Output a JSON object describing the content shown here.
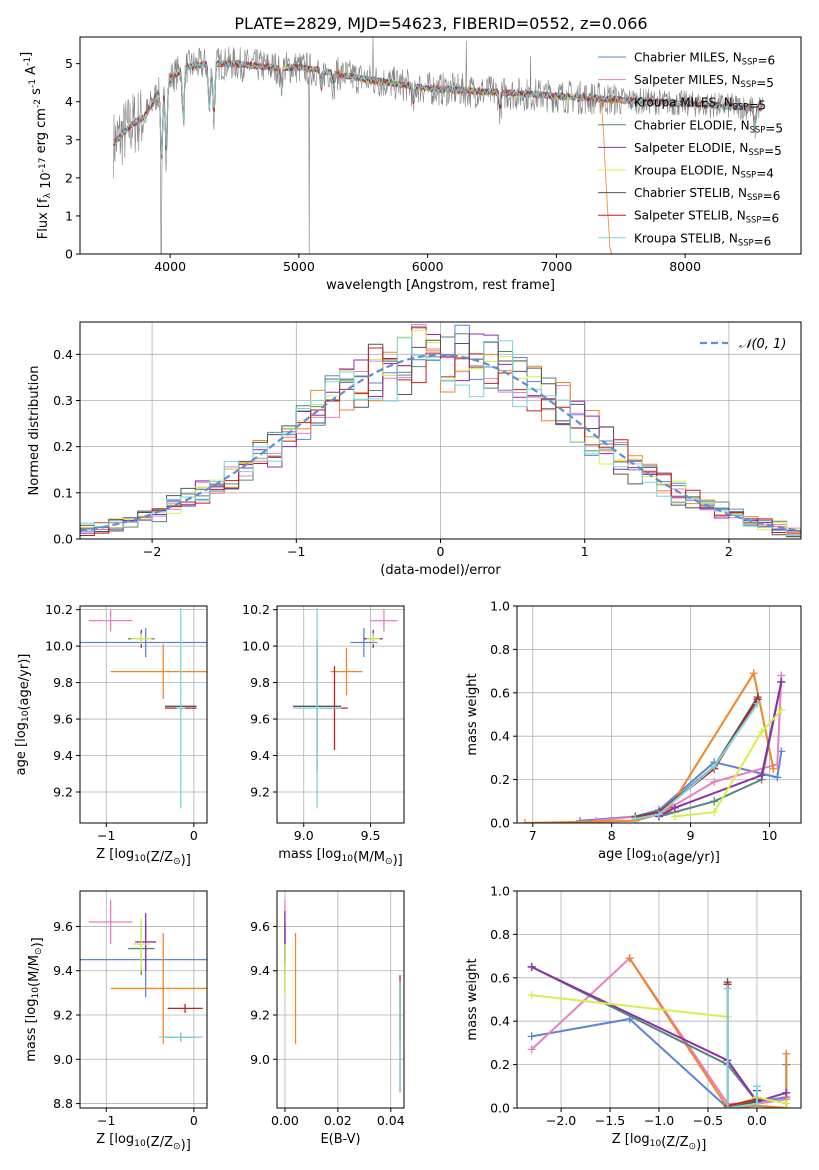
{
  "figure_title": "PLATE=2829, MJD=54623, FIBERID=0552, z=0.066",
  "colors": {
    "Chabrier MILES": "#5b86d6",
    "Salpeter MILES": "#e87fbf",
    "Kroupa MILES": "#f0862a",
    "Chabrier ELODIE": "#56877a",
    "Salpeter ELODIE": "#8f2fb0",
    "Kroupa ELODIE": "#d6f04a",
    "Chabrier STELIB": "#555555",
    "Salpeter STELIB": "#c81e1e",
    "Kroupa STELIB": "#79d6de",
    "normal_curve": "#5b8fd6",
    "data_spectrum": "#808080"
  },
  "chart_data": [
    {
      "id": "spectrum",
      "type": "line",
      "xlabel": "wavelength [Angstrom, rest frame]",
      "ylabel": "Flux [f_λ 10^-17 erg cm^-2 s^-1 A^-1]",
      "xlim": [
        3300,
        8900
      ],
      "ylim": [
        0,
        5.7
      ],
      "xticks": [
        4000,
        5000,
        6000,
        7000,
        8000
      ],
      "yticks": [
        0,
        1,
        2,
        3,
        4,
        5
      ],
      "legend_position": "upper right",
      "legend": [
        {
          "name": "Chabrier MILES, N_SSP=6",
          "color": "#5b86d6"
        },
        {
          "name": "Salpeter MILES, N_SSP=5",
          "color": "#e87fbf"
        },
        {
          "name": "Kroupa MILES, N_SSP=5",
          "color": "#f0862a"
        },
        {
          "name": "Chabrier ELODIE, N_SSP=5",
          "color": "#56877a"
        },
        {
          "name": "Salpeter ELODIE, N_SSP=5",
          "color": "#8f2fb0"
        },
        {
          "name": "Kroupa ELODIE, N_SSP=4",
          "color": "#d6f04a"
        },
        {
          "name": "Chabrier STELIB, N_SSP=6",
          "color": "#555555"
        },
        {
          "name": "Salpeter STELIB, N_SSP=6",
          "color": "#c81e1e"
        },
        {
          "name": "Kroupa STELIB, N_SSP=6",
          "color": "#79d6de"
        }
      ],
      "continuum": [
        [
          3560,
          2.9
        ],
        [
          3700,
          3.4
        ],
        [
          3800,
          3.6
        ],
        [
          3900,
          4.2
        ],
        [
          4000,
          4.6
        ],
        [
          4100,
          4.9
        ],
        [
          4300,
          5.0
        ],
        [
          4500,
          5.0
        ],
        [
          4800,
          4.9
        ],
        [
          5000,
          4.9
        ],
        [
          5200,
          4.8
        ],
        [
          5500,
          4.6
        ],
        [
          6000,
          4.35
        ],
        [
          6500,
          4.25
        ],
        [
          7000,
          4.15
        ],
        [
          7500,
          4.05
        ],
        [
          8000,
          3.95
        ],
        [
          8500,
          3.85
        ]
      ],
      "absorption_features": [
        [
          3934,
          2.3
        ],
        [
          3969,
          2.6
        ],
        [
          4102,
          3.4
        ],
        [
          4304,
          3.7
        ],
        [
          4340,
          3.5
        ],
        [
          4861,
          4.4
        ],
        [
          5175,
          4.3
        ],
        [
          5270,
          4.4
        ],
        [
          5890,
          3.9
        ],
        [
          6563,
          3.8
        ],
        [
          8542,
          3.3
        ],
        [
          8662,
          3.3
        ]
      ],
      "emission_spikes": [
        [
          5577,
          5.7
        ],
        [
          6300,
          5.6
        ],
        [
          6800,
          5.2
        ]
      ],
      "dropouts": [
        [
          3930,
          0
        ],
        [
          5080,
          0
        ]
      ],
      "data_extent": [
        3560,
        8600
      ]
    },
    {
      "id": "residuals",
      "type": "step",
      "xlabel": "(data-model)/error",
      "ylabel": "Normed distribution",
      "xlim": [
        -2.5,
        2.5
      ],
      "ylim": [
        0,
        0.47
      ],
      "xticks": [
        -2,
        -1,
        0,
        1,
        2
      ],
      "yticks": [
        0.0,
        0.1,
        0.2,
        0.3,
        0.4
      ],
      "normal_label": "𝒩(0, 1)",
      "legend_position": "upper right",
      "bin_width": 0.1,
      "bin_start": -2.5
    },
    {
      "id": "age_vs_Z",
      "type": "errorbar",
      "xlabel": "Z [log10(Z/Z_⊙)]",
      "ylabel": "age  [log10(age/yr)]",
      "xlim": [
        -1.3,
        0.15
      ],
      "ylim": [
        9.03,
        10.22
      ],
      "xticks": [
        -1,
        0
      ],
      "yticks": [
        9.2,
        9.4,
        9.6,
        9.8,
        10.0,
        10.2
      ],
      "points": [
        {
          "model": "Chabrier MILES",
          "x": -0.55,
          "xerr": 0.75,
          "y": 10.02,
          "yerr": 0.08
        },
        {
          "model": "Salpeter MILES",
          "x": -0.95,
          "xerr": 0.25,
          "y": 10.14,
          "yerr": 0.06
        },
        {
          "model": "Kroupa MILES",
          "x": -0.35,
          "xerr": 0.6,
          "y": 9.86,
          "yerr": 0.15
        },
        {
          "model": "Chabrier ELODIE",
          "x": -0.6,
          "xerr": 0.15,
          "y": 10.04,
          "yerr": 0.04
        },
        {
          "model": "Salpeter ELODIE",
          "x": -0.6,
          "xerr": 0.12,
          "y": 10.04,
          "yerr": 0.05
        },
        {
          "model": "Kroupa ELODIE",
          "x": -0.6,
          "xerr": 0.12,
          "y": 10.04,
          "yerr": 0.03
        },
        {
          "model": "Chabrier STELIB",
          "x": -0.15,
          "xerr": 0.18,
          "y": 9.67,
          "yerr": 0.02
        },
        {
          "model": "Salpeter STELIB",
          "x": -0.15,
          "xerr": 0.18,
          "y": 9.66,
          "yerr": 0.01
        },
        {
          "model": "Kroupa STELIB",
          "x": -0.15,
          "xerr": 0.05,
          "y": 9.66,
          "yerr": 0.55
        }
      ]
    },
    {
      "id": "age_vs_mass",
      "type": "errorbar",
      "xlabel": "mass [log10(M/M_⊙)]",
      "ylabel": "",
      "xlim": [
        8.8,
        9.75
      ],
      "ylim": [
        9.03,
        10.22
      ],
      "xticks": [
        9.0,
        9.5
      ],
      "yticks": [
        9.2,
        9.4,
        9.6,
        9.8,
        10.0,
        10.2
      ],
      "points": [
        {
          "model": "Chabrier MILES",
          "x": 9.45,
          "xerr": 0.1,
          "y": 10.02,
          "yerr": 0.08
        },
        {
          "model": "Salpeter MILES",
          "x": 9.6,
          "xerr": 0.1,
          "y": 10.14,
          "yerr": 0.06
        },
        {
          "model": "Kroupa MILES",
          "x": 9.32,
          "xerr": 0.12,
          "y": 9.86,
          "yerr": 0.13
        },
        {
          "model": "Chabrier ELODIE",
          "x": 9.52,
          "xerr": 0.07,
          "y": 10.04,
          "yerr": 0.04
        },
        {
          "model": "Salpeter ELODIE",
          "x": 9.52,
          "xerr": 0.07,
          "y": 10.04,
          "yerr": 0.05
        },
        {
          "model": "Kroupa ELODIE",
          "x": 9.52,
          "xerr": 0.05,
          "y": 10.04,
          "yerr": 0.03
        },
        {
          "model": "Chabrier STELIB",
          "x": 9.1,
          "xerr": 0.18,
          "y": 9.67,
          "yerr": 0.36
        },
        {
          "model": "Salpeter STELIB",
          "x": 9.23,
          "xerr": 0.1,
          "y": 9.66,
          "yerr": 0.23
        },
        {
          "model": "Kroupa STELIB",
          "x": 9.1,
          "xerr": 0.18,
          "y": 9.66,
          "yerr": 0.55
        }
      ]
    },
    {
      "id": "weight_vs_age",
      "type": "line",
      "xlabel": "age  [log10(age/yr)]",
      "ylabel": "mass weight",
      "xlim": [
        6.8,
        10.4
      ],
      "ylim": [
        0,
        1.0
      ],
      "xticks": [
        7,
        8,
        9,
        10
      ],
      "yticks": [
        0.0,
        0.2,
        0.4,
        0.6,
        0.8,
        1.0
      ],
      "series": [
        {
          "model": "Chabrier MILES",
          "x": [
            7.6,
            8.3,
            8.6,
            9.3,
            10.1,
            10.15
          ],
          "y": [
            0.01,
            0.03,
            0.06,
            0.28,
            0.21,
            0.33
          ]
        },
        {
          "model": "Salpeter MILES",
          "x": [
            7.8,
            8.6,
            9.3,
            10.1,
            10.15
          ],
          "y": [
            0.01,
            0.04,
            0.19,
            0.27,
            0.68
          ]
        },
        {
          "model": "Kroupa MILES",
          "x": [
            6.9,
            8.3,
            8.7,
            9.8,
            10.05
          ],
          "y": [
            0.0,
            0.01,
            0.05,
            0.69,
            0.25
          ]
        },
        {
          "model": "Chabrier ELODIE",
          "x": [
            8.6,
            8.8,
            9.3,
            9.9,
            10.15
          ],
          "y": [
            0.03,
            0.05,
            0.1,
            0.2,
            0.65
          ]
        },
        {
          "model": "Salpeter ELODIE",
          "x": [
            8.6,
            8.8,
            9.9,
            10.15
          ],
          "y": [
            0.03,
            0.07,
            0.22,
            0.65
          ]
        },
        {
          "model": "Kroupa ELODIE",
          "x": [
            8.8,
            9.3,
            9.9,
            10.15
          ],
          "y": [
            0.03,
            0.05,
            0.42,
            0.52
          ]
        },
        {
          "model": "Chabrier STELIB",
          "x": [
            8.3,
            8.6,
            9.3,
            9.85
          ],
          "y": [
            0.03,
            0.05,
            0.26,
            0.58
          ]
        },
        {
          "model": "Salpeter STELIB",
          "x": [
            8.3,
            8.6,
            9.3,
            9.85
          ],
          "y": [
            0.02,
            0.05,
            0.25,
            0.57
          ]
        },
        {
          "model": "Kroupa STELIB",
          "x": [
            8.3,
            8.6,
            9.3,
            9.85
          ],
          "y": [
            0.02,
            0.04,
            0.26,
            0.55
          ]
        }
      ]
    },
    {
      "id": "mass_vs_Z",
      "type": "errorbar",
      "xlabel": "Z [log10(Z/Z_⊙)]",
      "ylabel": "mass [log10(M/M_⊙)]",
      "xlim": [
        -1.3,
        0.15
      ],
      "ylim": [
        8.78,
        9.76
      ],
      "xticks": [
        -1,
        0
      ],
      "yticks": [
        8.8,
        9.0,
        9.2,
        9.4,
        9.6
      ],
      "points": [
        {
          "model": "Chabrier MILES",
          "x": -0.55,
          "xerr": 0.75,
          "y": 9.45,
          "yerr": 0.17
        },
        {
          "model": "Salpeter MILES",
          "x": -0.95,
          "xerr": 0.25,
          "y": 9.62,
          "yerr": 0.1
        },
        {
          "model": "Kroupa MILES",
          "x": -0.35,
          "xerr": 0.6,
          "y": 9.32,
          "yerr": 0.25
        },
        {
          "model": "Chabrier ELODIE",
          "x": -0.6,
          "xerr": 0.15,
          "y": 9.5,
          "yerr": 0.12
        },
        {
          "model": "Salpeter ELODIE",
          "x": -0.55,
          "xerr": 0.12,
          "y": 9.53,
          "yerr": 0.13
        },
        {
          "model": "Kroupa ELODIE",
          "x": -0.6,
          "xerr": 0.1,
          "y": 9.52,
          "yerr": 0.12
        },
        {
          "model": "Chabrier STELIB",
          "x": -0.15,
          "xerr": 0.18,
          "y": 9.1,
          "yerr": 0.02
        },
        {
          "model": "Salpeter STELIB",
          "x": -0.1,
          "xerr": 0.2,
          "y": 9.23,
          "yerr": 0.02
        },
        {
          "model": "Kroupa STELIB",
          "x": -0.15,
          "xerr": 0.25,
          "y": 9.1,
          "yerr": 0.02
        }
      ]
    },
    {
      "id": "mass_vs_ebv",
      "type": "errorbar",
      "xlabel": "E(B-V)",
      "ylabel": "",
      "xlim": [
        -0.003,
        0.045
      ],
      "ylim": [
        8.78,
        9.76
      ],
      "xticks": [
        0.0,
        0.02,
        0.04
      ],
      "yticks": [
        9.0,
        9.2,
        9.4,
        9.6
      ],
      "points": [
        {
          "model": "Chabrier MILES",
          "x": 0.0,
          "xerr": 0.0,
          "y": 9.45,
          "yerr": 0.15
        },
        {
          "model": "Salpeter MILES",
          "x": 0.0,
          "xerr": 0.0,
          "y": 9.62,
          "yerr": 0.1
        },
        {
          "model": "Kroupa MILES",
          "x": 0.004,
          "xerr": 0.0,
          "y": 9.32,
          "yerr": 0.25
        },
        {
          "model": "Chabrier ELODIE",
          "x": 0.0,
          "xerr": 0.0,
          "y": 9.5,
          "yerr": 0.12
        },
        {
          "model": "Salpeter ELODIE",
          "x": 0.0,
          "xerr": 0.0,
          "y": 9.55,
          "yerr": 0.12
        },
        {
          "model": "Kroupa ELODIE",
          "x": 0.0,
          "xerr": 0.0,
          "y": 9.4,
          "yerr": 0.12
        },
        {
          "model": "Chabrier STELIB",
          "x": 0.0435,
          "xerr": 0.0,
          "y": 9.1,
          "yerr": 0.25
        },
        {
          "model": "Salpeter STELIB",
          "x": 0.0435,
          "xerr": 0.0,
          "y": 9.23,
          "yerr": 0.15
        },
        {
          "model": "Kroupa STELIB",
          "x": 0.0435,
          "xerr": 0.0,
          "y": 9.1,
          "yerr": 0.25
        }
      ]
    },
    {
      "id": "weight_vs_Z",
      "type": "line",
      "xlabel": "Z [log10(Z/Z_⊙)]",
      "ylabel": "mass weight",
      "xlim": [
        -2.45,
        0.45
      ],
      "ylim": [
        0,
        1.0
      ],
      "xticks": [
        -2.0,
        -1.5,
        -1.0,
        -0.5,
        0.0
      ],
      "yticks": [
        0.0,
        0.2,
        0.4,
        0.6,
        0.8,
        1.0
      ],
      "series": [
        {
          "model": "Chabrier MILES",
          "x": [
            -2.3,
            -1.3,
            -0.3,
            0.0,
            0.3,
            0.3
          ],
          "y": [
            0.33,
            0.41,
            0.0,
            0.03,
            0.05,
            0.2
          ]
        },
        {
          "model": "Salpeter MILES",
          "x": [
            -2.3,
            -1.3,
            -0.3,
            0.0,
            0.3
          ],
          "y": [
            0.27,
            0.69,
            0.02,
            0.02,
            0.04
          ]
        },
        {
          "model": "Kroupa MILES",
          "x": [
            -1.3,
            -0.3,
            0.0,
            0.3,
            0.3
          ],
          "y": [
            0.69,
            0.0,
            0.01,
            0.0,
            0.25
          ]
        },
        {
          "model": "Chabrier ELODIE",
          "x": [
            -2.3,
            -0.3,
            0.0
          ],
          "y": [
            0.65,
            0.2,
            0.03
          ]
        },
        {
          "model": "Salpeter ELODIE",
          "x": [
            -2.3,
            -0.3,
            0.0,
            0.3
          ],
          "y": [
            0.65,
            0.22,
            0.03,
            0.07
          ]
        },
        {
          "model": "Kroupa ELODIE",
          "x": [
            -2.3,
            -0.3,
            -0.3,
            0.0,
            0.3
          ],
          "y": [
            0.52,
            0.42,
            0.0,
            0.05,
            0.02
          ]
        },
        {
          "model": "Chabrier STELIB",
          "x": [
            -0.3,
            -0.3,
            0.0,
            0.0
          ],
          "y": [
            0.58,
            0.0,
            0.03,
            0.08
          ]
        },
        {
          "model": "Salpeter STELIB",
          "x": [
            -0.3,
            -0.3,
            0.0
          ],
          "y": [
            0.57,
            0.01,
            0.04
          ]
        },
        {
          "model": "Kroupa STELIB",
          "x": [
            -0.3,
            -0.3,
            0.0,
            0.0
          ],
          "y": [
            0.55,
            0.0,
            0.02,
            0.1
          ]
        }
      ]
    }
  ]
}
